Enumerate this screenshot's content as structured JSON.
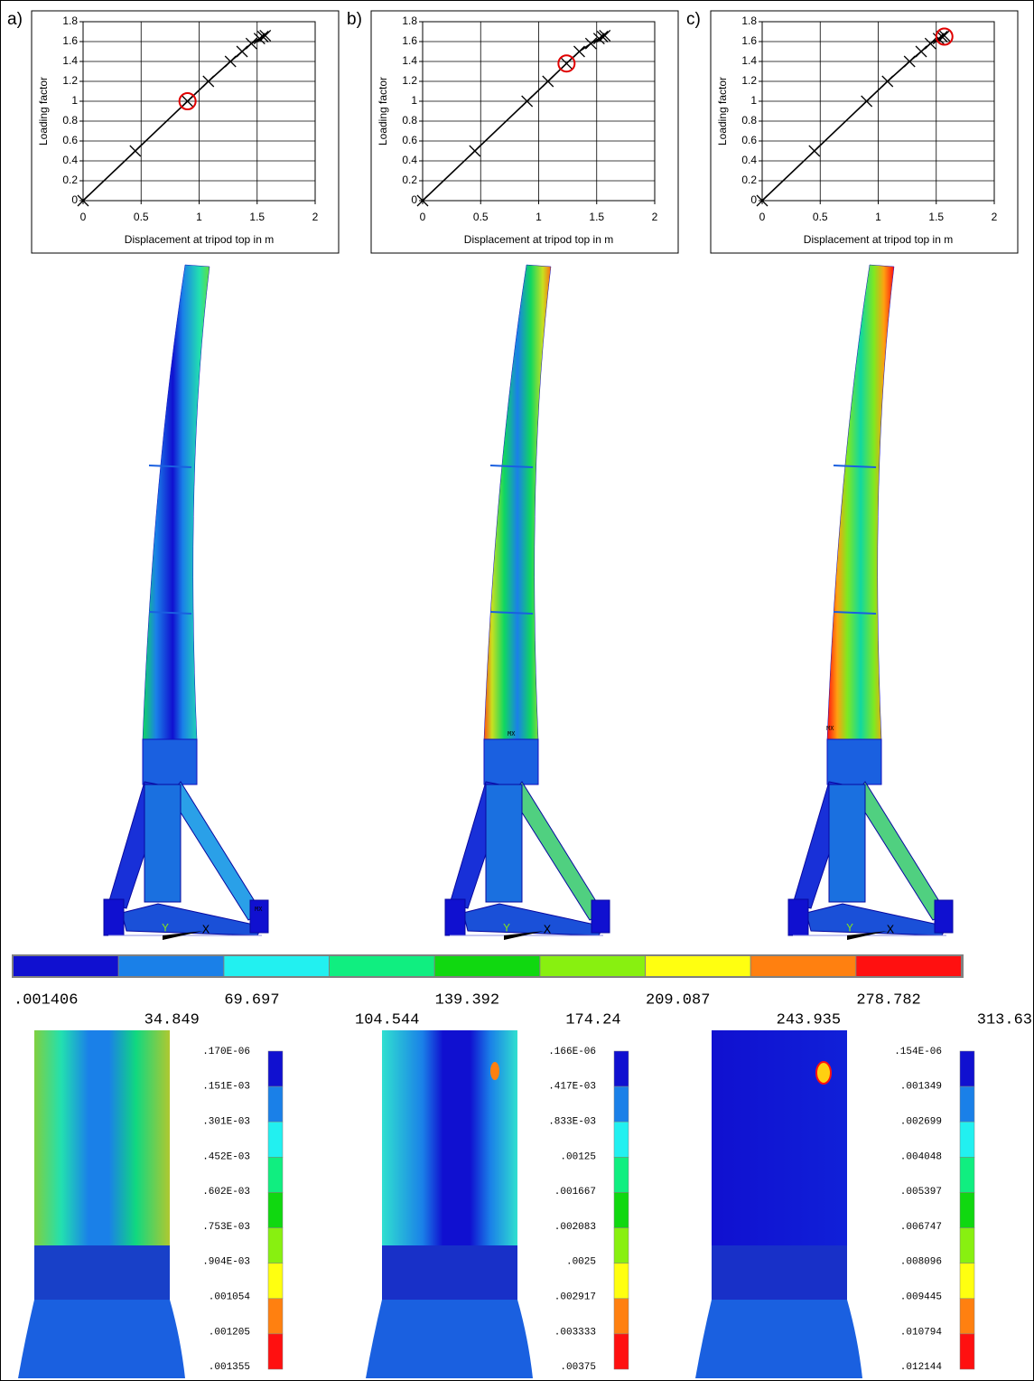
{
  "chart_data": [
    {
      "type": "line",
      "panel": "a)",
      "xlabel": "Displacement at tripod top in m",
      "ylabel": "Loading factor",
      "x": [
        0,
        0.45,
        0.9,
        1.08,
        1.27,
        1.37,
        1.45,
        1.52,
        1.55,
        1.57
      ],
      "y": [
        0,
        0.5,
        1.0,
        1.2,
        1.4,
        1.5,
        1.58,
        1.63,
        1.65,
        1.66
      ],
      "highlight": {
        "x": 0.9,
        "y": 1.0
      },
      "color": "#000000",
      "highlight_color": "#e00000",
      "xlim": [
        0,
        2
      ],
      "xticks": [
        0,
        0.5,
        1,
        1.5,
        2
      ],
      "ylim": [
        0,
        1.8
      ],
      "yticks": [
        0,
        0.2,
        0.4,
        0.6,
        0.8,
        1,
        1.2,
        1.4,
        1.6,
        1.8
      ],
      "grid": true
    },
    {
      "type": "line",
      "panel": "b)",
      "xlabel": "Displacement at tripod top in m",
      "ylabel": "Loading factor",
      "x": [
        0,
        0.45,
        0.9,
        1.08,
        1.24,
        1.35,
        1.45,
        1.52,
        1.55,
        1.57
      ],
      "y": [
        0,
        0.5,
        1.0,
        1.2,
        1.38,
        1.5,
        1.58,
        1.63,
        1.65,
        1.66
      ],
      "highlight": {
        "x": 1.24,
        "y": 1.38
      },
      "color": "#000000",
      "highlight_color": "#e00000",
      "xlim": [
        0,
        2
      ],
      "xticks": [
        0,
        0.5,
        1,
        1.5,
        2
      ],
      "ylim": [
        0,
        1.8
      ],
      "yticks": [
        0,
        0.2,
        0.4,
        0.6,
        0.8,
        1,
        1.2,
        1.4,
        1.6,
        1.8
      ],
      "grid": true
    },
    {
      "type": "line",
      "panel": "c)",
      "xlabel": "Displacement at tripod top in m",
      "ylabel": "Loading factor",
      "x": [
        0,
        0.45,
        0.9,
        1.08,
        1.27,
        1.37,
        1.45,
        1.52,
        1.55,
        1.57
      ],
      "y": [
        0,
        0.5,
        1.0,
        1.2,
        1.4,
        1.5,
        1.58,
        1.63,
        1.65,
        1.66
      ],
      "highlight": {
        "x": 1.57,
        "y": 1.65
      },
      "color": "#000000",
      "highlight_color": "#e00000",
      "xlim": [
        0,
        2
      ],
      "xticks": [
        0,
        0.5,
        1,
        1.5,
        2
      ],
      "ylim": [
        0,
        1.8
      ],
      "yticks": [
        0,
        0.2,
        0.4,
        0.6,
        0.8,
        1,
        1.2,
        1.4,
        1.6,
        1.8
      ],
      "grid": true
    }
  ],
  "model": {
    "max_marker": "MX",
    "axis_y": "Y",
    "axis_x": "X"
  },
  "colorbar": {
    "colors": [
      "#1010d0",
      "#1a80e8",
      "#22f0f0",
      "#10ee80",
      "#10d810",
      "#88f010",
      "#ffff10",
      "#ff8010",
      "#ff1010"
    ],
    "labels": [
      ".001406",
      "34.849",
      "69.697",
      "104.544",
      "139.392",
      "174.24",
      "209.087",
      "243.935",
      "278.782",
      "313.63"
    ]
  },
  "detail_colorbars": [
    {
      "labels": [
        ".170E-06",
        ".151E-03",
        ".301E-03",
        ".452E-03",
        ".602E-03",
        ".753E-03",
        ".904E-03",
        ".001054",
        ".001205",
        ".001355"
      ]
    },
    {
      "labels": [
        ".166E-06",
        ".417E-03",
        ".833E-03",
        ".00125",
        ".001667",
        ".002083",
        ".0025",
        ".002917",
        ".003333",
        ".00375"
      ]
    },
    {
      "labels": [
        ".154E-06",
        ".001349",
        ".002699",
        ".004048",
        ".005397",
        ".006747",
        ".008096",
        ".009445",
        ".010794",
        ".012144"
      ]
    }
  ]
}
